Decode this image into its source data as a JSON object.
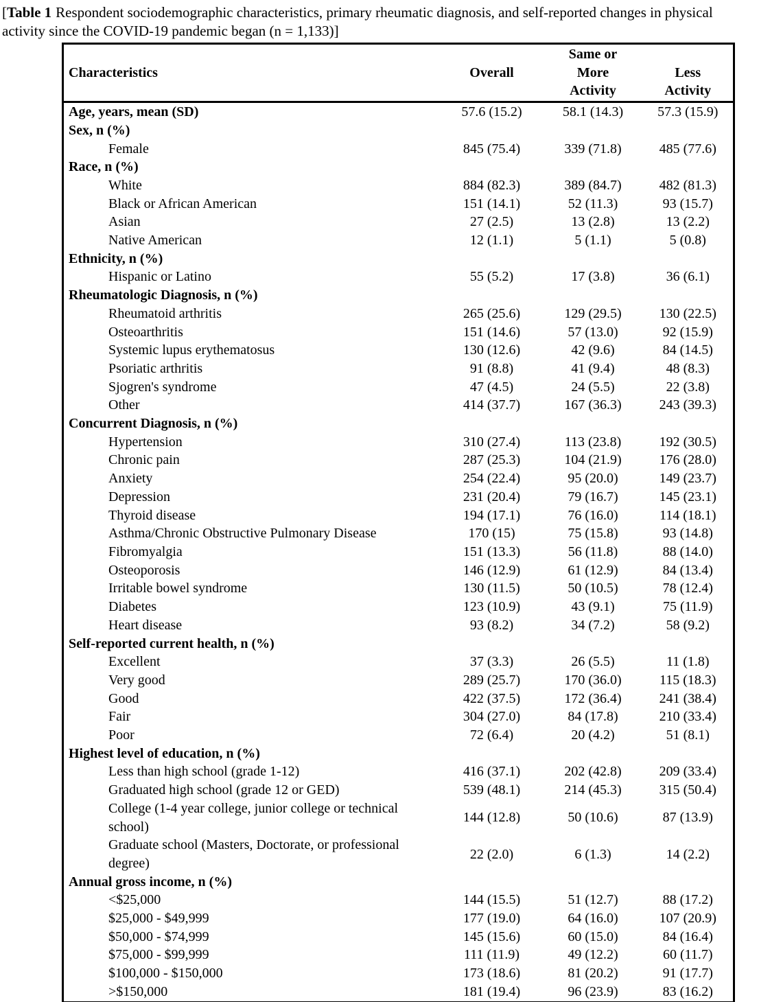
{
  "caption": {
    "bracket_open": "[",
    "label": "Table 1",
    "rest": "Respondent sociodemographic characteristics, primary rheumatic diagnosis, and self-reported changes in physical activity since the COVID-19 pandemic began (n = 1,133)]"
  },
  "table": {
    "header": {
      "characteristics": "Characteristics",
      "overall": "Overall",
      "same_more_lines": [
        "Same or",
        "More",
        "Activity"
      ],
      "less_lines": [
        "Less",
        "Activity"
      ]
    },
    "rows": [
      {
        "kind": "measure",
        "label": "Age, years, mean (SD)",
        "overall": "57.6 (15.2)",
        "same_more": "58.1 (14.3)",
        "less": "57.3 (15.9)"
      },
      {
        "kind": "section",
        "label": "Sex, n (%)",
        "overall": "",
        "same_more": "",
        "less": ""
      },
      {
        "kind": "item",
        "label": "Female",
        "overall": "845 (75.4)",
        "same_more": "339 (71.8)",
        "less": "485 (77.6)"
      },
      {
        "kind": "section",
        "label": "Race, n (%)",
        "overall": "",
        "same_more": "",
        "less": ""
      },
      {
        "kind": "item",
        "label": "White",
        "overall": "884 (82.3)",
        "same_more": "389 (84.7)",
        "less": "482 (81.3)"
      },
      {
        "kind": "item",
        "label": "Black or African American",
        "overall": "151 (14.1)",
        "same_more": "52 (11.3)",
        "less": "93 (15.7)"
      },
      {
        "kind": "item",
        "label": "Asian",
        "overall": "27 (2.5)",
        "same_more": "13 (2.8)",
        "less": "13 (2.2)"
      },
      {
        "kind": "item",
        "label": "Native American",
        "overall": "12 (1.1)",
        "same_more": "5 (1.1)",
        "less": "5 (0.8)"
      },
      {
        "kind": "section",
        "label": "Ethnicity, n (%)",
        "overall": "",
        "same_more": "",
        "less": ""
      },
      {
        "kind": "item",
        "label": "Hispanic or Latino",
        "overall": "55 (5.2)",
        "same_more": "17 (3.8)",
        "less": "36 (6.1)"
      },
      {
        "kind": "section",
        "label": "Rheumatologic Diagnosis, n (%)",
        "overall": "",
        "same_more": "",
        "less": ""
      },
      {
        "kind": "item",
        "label": "Rheumatoid arthritis",
        "overall": "265 (25.6)",
        "same_more": "129 (29.5)",
        "less": "130 (22.5)"
      },
      {
        "kind": "item",
        "label": "Osteoarthritis",
        "overall": "151 (14.6)",
        "same_more": "57 (13.0)",
        "less": "92 (15.9)"
      },
      {
        "kind": "item",
        "label": "Systemic lupus erythematosus",
        "overall": "130 (12.6)",
        "same_more": "42 (9.6)",
        "less": "84 (14.5)"
      },
      {
        "kind": "item",
        "label": "Psoriatic arthritis",
        "overall": "91 (8.8)",
        "same_more": "41 (9.4)",
        "less": "48 (8.3)"
      },
      {
        "kind": "item",
        "label": "Sjogren's syndrome",
        "overall": "47 (4.5)",
        "same_more": "24 (5.5)",
        "less": "22 (3.8)"
      },
      {
        "kind": "item",
        "label": "Other",
        "overall": "414 (37.7)",
        "same_more": "167 (36.3)",
        "less": "243 (39.3)"
      },
      {
        "kind": "section",
        "label": "Concurrent Diagnosis, n (%)",
        "overall": "",
        "same_more": "",
        "less": ""
      },
      {
        "kind": "item",
        "label": "Hypertension",
        "overall": "310 (27.4)",
        "same_more": "113 (23.8)",
        "less": "192 (30.5)"
      },
      {
        "kind": "item",
        "label": "Chronic pain",
        "overall": "287 (25.3)",
        "same_more": "104 (21.9)",
        "less": "176 (28.0)"
      },
      {
        "kind": "item",
        "label": "Anxiety",
        "overall": "254 (22.4)",
        "same_more": "95 (20.0)",
        "less": "149 (23.7)"
      },
      {
        "kind": "item",
        "label": "Depression",
        "overall": "231 (20.4)",
        "same_more": "79 (16.7)",
        "less": "145 (23.1)"
      },
      {
        "kind": "item",
        "label": "Thyroid disease",
        "overall": "194 (17.1)",
        "same_more": "76 (16.0)",
        "less": "114 (18.1)"
      },
      {
        "kind": "item",
        "label": "Asthma/Chronic Obstructive Pulmonary Disease",
        "overall": "170 (15)",
        "same_more": "75 (15.8)",
        "less": "93 (14.8)"
      },
      {
        "kind": "item",
        "label": "Fibromyalgia",
        "overall": "151 (13.3)",
        "same_more": "56 (11.8)",
        "less": "88 (14.0)"
      },
      {
        "kind": "item",
        "label": "Osteoporosis",
        "overall": "146 (12.9)",
        "same_more": "61 (12.9)",
        "less": "84 (13.4)"
      },
      {
        "kind": "item",
        "label": "Irritable bowel syndrome",
        "overall": "130 (11.5)",
        "same_more": "50 (10.5)",
        "less": "78 (12.4)"
      },
      {
        "kind": "item",
        "label": "Diabetes",
        "overall": "123 (10.9)",
        "same_more": "43 (9.1)",
        "less": "75 (11.9)"
      },
      {
        "kind": "item",
        "label": "Heart disease",
        "overall": "93 (8.2)",
        "same_more": "34 (7.2)",
        "less": "58 (9.2)"
      },
      {
        "kind": "section",
        "label": "Self-reported current health, n (%)",
        "overall": "",
        "same_more": "",
        "less": ""
      },
      {
        "kind": "item",
        "label": "Excellent",
        "overall": "37 (3.3)",
        "same_more": "26 (5.5)",
        "less": "11 (1.8)"
      },
      {
        "kind": "item",
        "label": "Very good",
        "overall": "289 (25.7)",
        "same_more": "170 (36.0)",
        "less": "115 (18.3)"
      },
      {
        "kind": "item",
        "label": "Good",
        "overall": "422 (37.5)",
        "same_more": "172 (36.4)",
        "less": "241 (38.4)"
      },
      {
        "kind": "item",
        "label": "Fair",
        "overall": "304 (27.0)",
        "same_more": "84 (17.8)",
        "less": "210 (33.4)"
      },
      {
        "kind": "item",
        "label": "Poor",
        "overall": "72 (6.4)",
        "same_more": "20 (4.2)",
        "less": "51 (8.1)"
      },
      {
        "kind": "section",
        "label": "Highest level of education, n (%)",
        "overall": "",
        "same_more": "",
        "less": ""
      },
      {
        "kind": "item",
        "label": "Less than high school (grade 1-12)",
        "overall": "416 (37.1)",
        "same_more": "202 (42.8)",
        "less": "209 (33.4)"
      },
      {
        "kind": "item",
        "label": "Graduated high school (grade 12 or GED)",
        "overall": "539 (48.1)",
        "same_more": "214 (45.3)",
        "less": "315 (50.4)"
      },
      {
        "kind": "item",
        "label": "College (1-4 year college, junior college or technical school)",
        "overall": "144 (12.8)",
        "same_more": "50 (10.6)",
        "less": "87 (13.9)"
      },
      {
        "kind": "item",
        "label": "Graduate school (Masters, Doctorate, or professional degree)",
        "overall": "22 (2.0)",
        "same_more": "6 (1.3)",
        "less": "14 (2.2)"
      },
      {
        "kind": "section",
        "label": "Annual gross income, n (%)",
        "overall": "",
        "same_more": "",
        "less": ""
      },
      {
        "kind": "item",
        "label": "<$25,000",
        "overall": "144 (15.5)",
        "same_more": "51 (12.7)",
        "less": "88 (17.2)"
      },
      {
        "kind": "item",
        "label": "$25,000 - $49,999",
        "overall": "177 (19.0)",
        "same_more": "64 (16.0)",
        "less": "107 (20.9)"
      },
      {
        "kind": "item",
        "label": "$50,000 - $74,999",
        "overall": "145 (15.6)",
        "same_more": "60 (15.0)",
        "less": "84 (16.4)"
      },
      {
        "kind": "item",
        "label": "$75,000 - $99,999",
        "overall": "111 (11.9)",
        "same_more": "49 (12.2)",
        "less": "60 (11.7)"
      },
      {
        "kind": "item",
        "label": "$100,000 - $150,000",
        "overall": "173 (18.6)",
        "same_more": "81 (20.2)",
        "less": "91 (17.7)"
      },
      {
        "kind": "item",
        "label": ">$150,000",
        "overall": "181 (19.4)",
        "same_more": "96 (23.9)",
        "less": "83 (16.2)"
      }
    ]
  }
}
